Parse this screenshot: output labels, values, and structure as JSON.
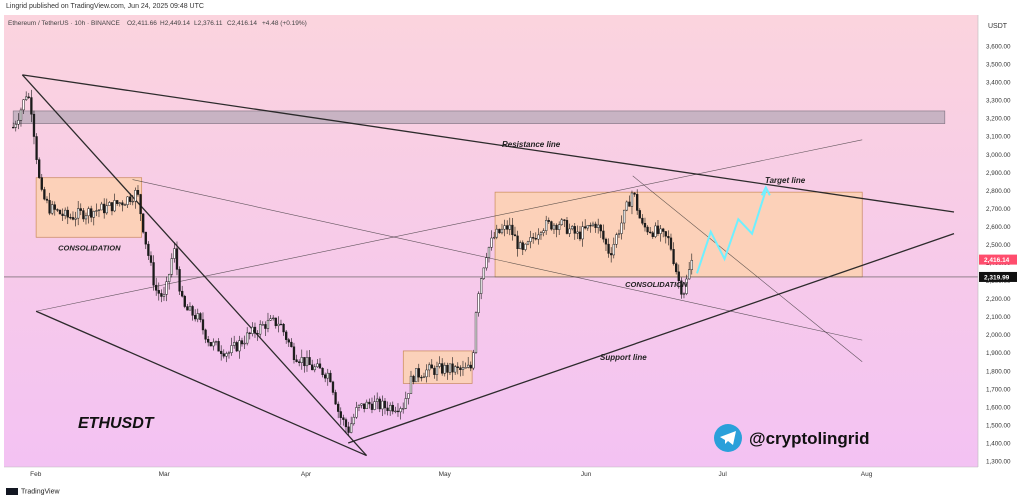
{
  "header": {
    "published_by": "Lingrid published on TradingView.com, Jun 24, 2025 09:48 UTC",
    "symbol_line": "Ethereum / TetherUS · 10h · BINANCE",
    "ohlc": {
      "open": "O2,411.66",
      "high": "H2,449.14",
      "low": "L2,376.11",
      "close": "C2,416.14",
      "change": "+4.48 (+0.19%)"
    }
  },
  "footer": {
    "brand": "TradingView"
  },
  "colors": {
    "background_top": "#fbd4de",
    "background_bottom": "#f3c2f3",
    "candle": "#1a1a1a",
    "zone_fill": "#fcd1b4",
    "zone_stroke": "#c98a5a",
    "resistance_box": "#b7aab8",
    "target_path": "#6ff0ff",
    "price_badge": "#ff4d6d",
    "telegram": "#2aa0da"
  },
  "chart_data": {
    "type": "candlestick",
    "title": "ETHUSDT",
    "currency": "USDT",
    "x_ticks": [
      "Feb",
      "Mar",
      "Apr",
      "May",
      "Jun",
      "Jul",
      "Aug"
    ],
    "y_ticks": [
      1300,
      1400,
      1500,
      1600,
      1700,
      1800,
      1900,
      2000,
      2100,
      2200,
      2300,
      2400,
      2500,
      2600,
      2700,
      2800,
      2900,
      3000,
      3100,
      3200,
      3300,
      3400,
      3500,
      3600
    ],
    "y_tick_labels": [
      "1,300.00",
      "1,400.00",
      "1,500.00",
      "1,600.00",
      "1,700.00",
      "1,800.00",
      "1,900.00",
      "2,000.00",
      "2,100.00",
      "2,200.00",
      "2,300.00",
      "2,400.00",
      "2,500.00",
      "2,600.00",
      "2,700.00",
      "2,800.00",
      "2,900.00",
      "3,000.00",
      "3,100.00",
      "3,200.00",
      "3,300.00",
      "3,400.00",
      "3,500.00",
      "3,600.00"
    ],
    "ylim": [
      1260,
      3700
    ],
    "last_price": {
      "value": 2416.14,
      "label": "2,416.14"
    },
    "horizontal_level": {
      "value": 2319.99,
      "label": "2,319.99"
    },
    "price_path": [
      [
        "2025-01-27",
        3150
      ],
      [
        "2025-01-29",
        3270
      ],
      [
        "2025-01-30",
        3350
      ],
      [
        "2025-01-31",
        3250
      ],
      [
        "2025-02-02",
        2780
      ],
      [
        "2025-02-04",
        2700
      ],
      [
        "2025-02-08",
        2650
      ],
      [
        "2025-02-12",
        2680
      ],
      [
        "2025-02-16",
        2700
      ],
      [
        "2025-02-20",
        2740
      ],
      [
        "2025-02-23",
        2790
      ],
      [
        "2025-02-25",
        2500
      ],
      [
        "2025-02-27",
        2250
      ],
      [
        "2025-03-01",
        2200
      ],
      [
        "2025-03-03",
        2480
      ],
      [
        "2025-03-05",
        2150
      ],
      [
        "2025-03-08",
        2100
      ],
      [
        "2025-03-11",
        1950
      ],
      [
        "2025-03-15",
        1900
      ],
      [
        "2025-03-19",
        1990
      ],
      [
        "2025-03-23",
        2060
      ],
      [
        "2025-03-26",
        2070
      ],
      [
        "2025-03-29",
        1900
      ],
      [
        "2025-04-02",
        1820
      ],
      [
        "2025-04-06",
        1780
      ],
      [
        "2025-04-08",
        1560
      ],
      [
        "2025-04-10",
        1470
      ],
      [
        "2025-04-12",
        1590
      ],
      [
        "2025-04-15",
        1620
      ],
      [
        "2025-04-18",
        1600
      ],
      [
        "2025-04-22",
        1610
      ],
      [
        "2025-04-24",
        1770
      ],
      [
        "2025-04-27",
        1800
      ],
      [
        "2025-05-01",
        1810
      ],
      [
        "2025-05-05",
        1800
      ],
      [
        "2025-05-07",
        1820
      ],
      [
        "2025-05-08",
        2200
      ],
      [
        "2025-05-10",
        2450
      ],
      [
        "2025-05-12",
        2550
      ],
      [
        "2025-05-15",
        2600
      ],
      [
        "2025-05-18",
        2450
      ],
      [
        "2025-05-22",
        2600
      ],
      [
        "2025-05-26",
        2620
      ],
      [
        "2025-05-30",
        2550
      ],
      [
        "2025-06-03",
        2620
      ],
      [
        "2025-06-06",
        2450
      ],
      [
        "2025-06-09",
        2650
      ],
      [
        "2025-06-11",
        2800
      ],
      [
        "2025-06-13",
        2600
      ],
      [
        "2025-06-16",
        2570
      ],
      [
        "2025-06-19",
        2520
      ],
      [
        "2025-06-21",
        2300
      ],
      [
        "2025-06-22",
        2230
      ],
      [
        "2025-06-24",
        2416
      ]
    ],
    "lines": [
      {
        "name": "Resistance line",
        "from": [
          "2025-01-29",
          3440
        ],
        "to": [
          "2025-08-20",
          2680
        ]
      },
      {
        "name": "Support line",
        "from": [
          "2025-04-10",
          1400
        ],
        "to": [
          "2025-08-20",
          2560
        ]
      },
      {
        "from": [
          "2025-01-29",
          3440
        ],
        "to": [
          "2025-04-14",
          1330
        ]
      },
      {
        "from": [
          "2025-02-01",
          2130
        ],
        "to": [
          "2025-04-14",
          1330
        ]
      },
      {
        "from": [
          "2025-02-01",
          2130
        ],
        "to": [
          "2025-07-31",
          3080
        ]
      },
      {
        "from": [
          "2025-02-22",
          2860
        ],
        "to": [
          "2025-07-31",
          1970
        ]
      },
      {
        "from": [
          "2025-06-11",
          2880
        ],
        "to": [
          "2025-07-31",
          1850
        ]
      }
    ],
    "zones": [
      {
        "label": "CONSOLIDATION",
        "x": [
          "2025-02-01",
          "2025-02-24"
        ],
        "y": [
          2540,
          2870
        ]
      },
      {
        "label": "CONSOLIDATION",
        "x": [
          "2025-05-12",
          "2025-07-31"
        ],
        "y": [
          2320,
          2790
        ]
      },
      {
        "x": [
          "2025-04-22",
          "2025-05-07"
        ],
        "y": [
          1730,
          1910
        ]
      }
    ],
    "resistance_box": {
      "x": [
        "2025-01-27",
        "2025-08-18"
      ],
      "y": [
        3170,
        3240
      ]
    },
    "annotations": [
      "Resistance line",
      "Target line",
      "Support line",
      "CONSOLIDATION",
      "CONSOLIDATION"
    ],
    "target_path": [
      [
        "2025-06-25",
        2340
      ],
      [
        "2025-06-28",
        2570
      ],
      [
        "2025-07-01",
        2420
      ],
      [
        "2025-07-04",
        2640
      ],
      [
        "2025-07-07",
        2560
      ],
      [
        "2025-07-10",
        2800
      ]
    ],
    "watermark_symbol": "ETHUSDT",
    "handle": "@cryptolingrid"
  }
}
